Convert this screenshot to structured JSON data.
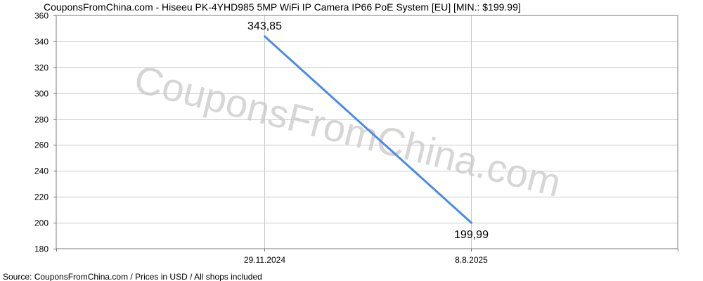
{
  "chart_data": {
    "type": "line",
    "title": "CouponsFromChina.com - Hiseeu PK-4YHD985 5MP WiFi IP Camera IP66 PoE System [EU] [MIN.: $199.99]",
    "watermark": "CouponsFromChina.com",
    "footer": "Source:  CouponsFromChina.com / Prices in USD / All shops included",
    "x_labels": [
      "29.11.2024",
      "8.8.2025"
    ],
    "y_ticks": [
      180,
      200,
      220,
      240,
      260,
      280,
      300,
      320,
      340,
      360
    ],
    "ylim": [
      180,
      360
    ],
    "grid": true,
    "series": [
      {
        "color": "#4a8ae8",
        "points": [
          {
            "x": "29.11.2024",
            "y": 343.85,
            "label": "343,85"
          },
          {
            "x": "8.8.2025",
            "y": 199.99,
            "label": "199,99"
          }
        ]
      }
    ]
  }
}
